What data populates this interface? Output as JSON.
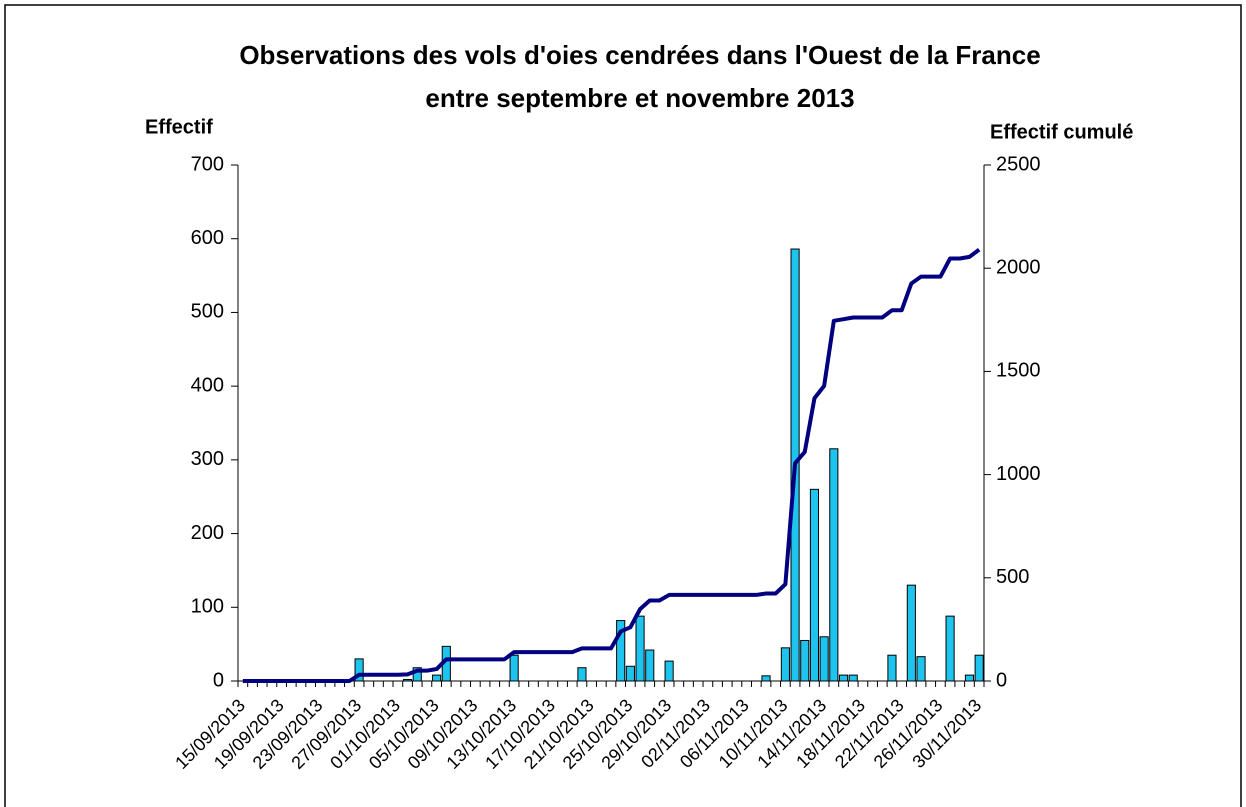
{
  "chart_data": {
    "type": "bar_line",
    "title": [
      "Observations des vols d'oies cendrées dans l'Ouest de la France",
      "entre septembre et novembre 2013"
    ],
    "ylabel": "Effectif",
    "y2label": "Effectif cumulé",
    "categories": [
      "15/09/2013",
      null,
      null,
      null,
      "19/09/2013",
      null,
      null,
      null,
      "23/09/2013",
      null,
      null,
      null,
      "27/09/2013",
      null,
      null,
      null,
      "01/10/2013",
      null,
      null,
      null,
      "05/10/2013",
      null,
      null,
      null,
      "09/10/2013",
      null,
      null,
      null,
      "13/10/2013",
      null,
      null,
      null,
      "17/10/2013",
      null,
      null,
      null,
      "21/10/2013",
      null,
      null,
      null,
      "25/10/2013",
      null,
      null,
      null,
      "29/10/2013",
      null,
      null,
      null,
      "02/11/2013",
      null,
      null,
      null,
      "06/11/2013",
      null,
      null,
      null,
      "10/11/2013",
      null,
      null,
      null,
      "14/11/2013",
      null,
      null,
      null,
      "18/11/2013",
      null,
      null,
      null,
      "22/11/2013",
      null,
      null,
      null,
      "26/11/2013",
      null,
      null,
      null,
      "30/11/2013"
    ],
    "series": [
      {
        "name": "Effectif",
        "type": "bar",
        "color": "#1ec3ee",
        "axis": "y",
        "values": [
          0,
          0,
          0,
          0,
          0,
          0,
          0,
          0,
          0,
          0,
          0,
          0,
          30,
          0,
          0,
          0,
          0,
          2,
          18,
          0,
          8,
          47,
          0,
          0,
          0,
          0,
          0,
          0,
          35,
          0,
          0,
          0,
          0,
          0,
          0,
          18,
          0,
          0,
          0,
          82,
          20,
          88,
          42,
          0,
          27,
          0,
          0,
          0,
          0,
          0,
          0,
          0,
          0,
          0,
          7,
          0,
          45,
          586,
          55,
          260,
          60,
          315,
          8,
          8,
          0,
          0,
          0,
          35,
          0,
          130,
          33,
          0,
          0,
          88,
          0,
          8,
          35
        ]
      },
      {
        "name": "Effectif cumulé",
        "type": "line",
        "color": "#000080",
        "axis": "y2",
        "values": [
          0,
          0,
          0,
          0,
          0,
          0,
          0,
          0,
          0,
          0,
          0,
          0,
          30,
          30,
          30,
          30,
          30,
          32,
          50,
          50,
          58,
          105,
          105,
          105,
          105,
          105,
          105,
          105,
          140,
          140,
          140,
          140,
          140,
          140,
          140,
          158,
          158,
          158,
          158,
          240,
          260,
          348,
          390,
          390,
          417,
          417,
          417,
          417,
          417,
          417,
          417,
          417,
          417,
          417,
          424,
          424,
          469,
          1055,
          1110,
          1370,
          1430,
          1745,
          1753,
          1761,
          1761,
          1761,
          1761,
          1796,
          1796,
          1926,
          1959,
          1959,
          1959,
          2047,
          2047,
          2055,
          2090
        ]
      }
    ],
    "ylim": [
      0,
      700
    ],
    "yticks": [
      0,
      100,
      200,
      300,
      400,
      500,
      600,
      700
    ],
    "y2lim": [
      0,
      2500
    ],
    "y2ticks": [
      0,
      500,
      1000,
      1500,
      2000,
      2500
    ],
    "ylabel_color": "#1ec3ee",
    "y2label_color": "#333399"
  }
}
